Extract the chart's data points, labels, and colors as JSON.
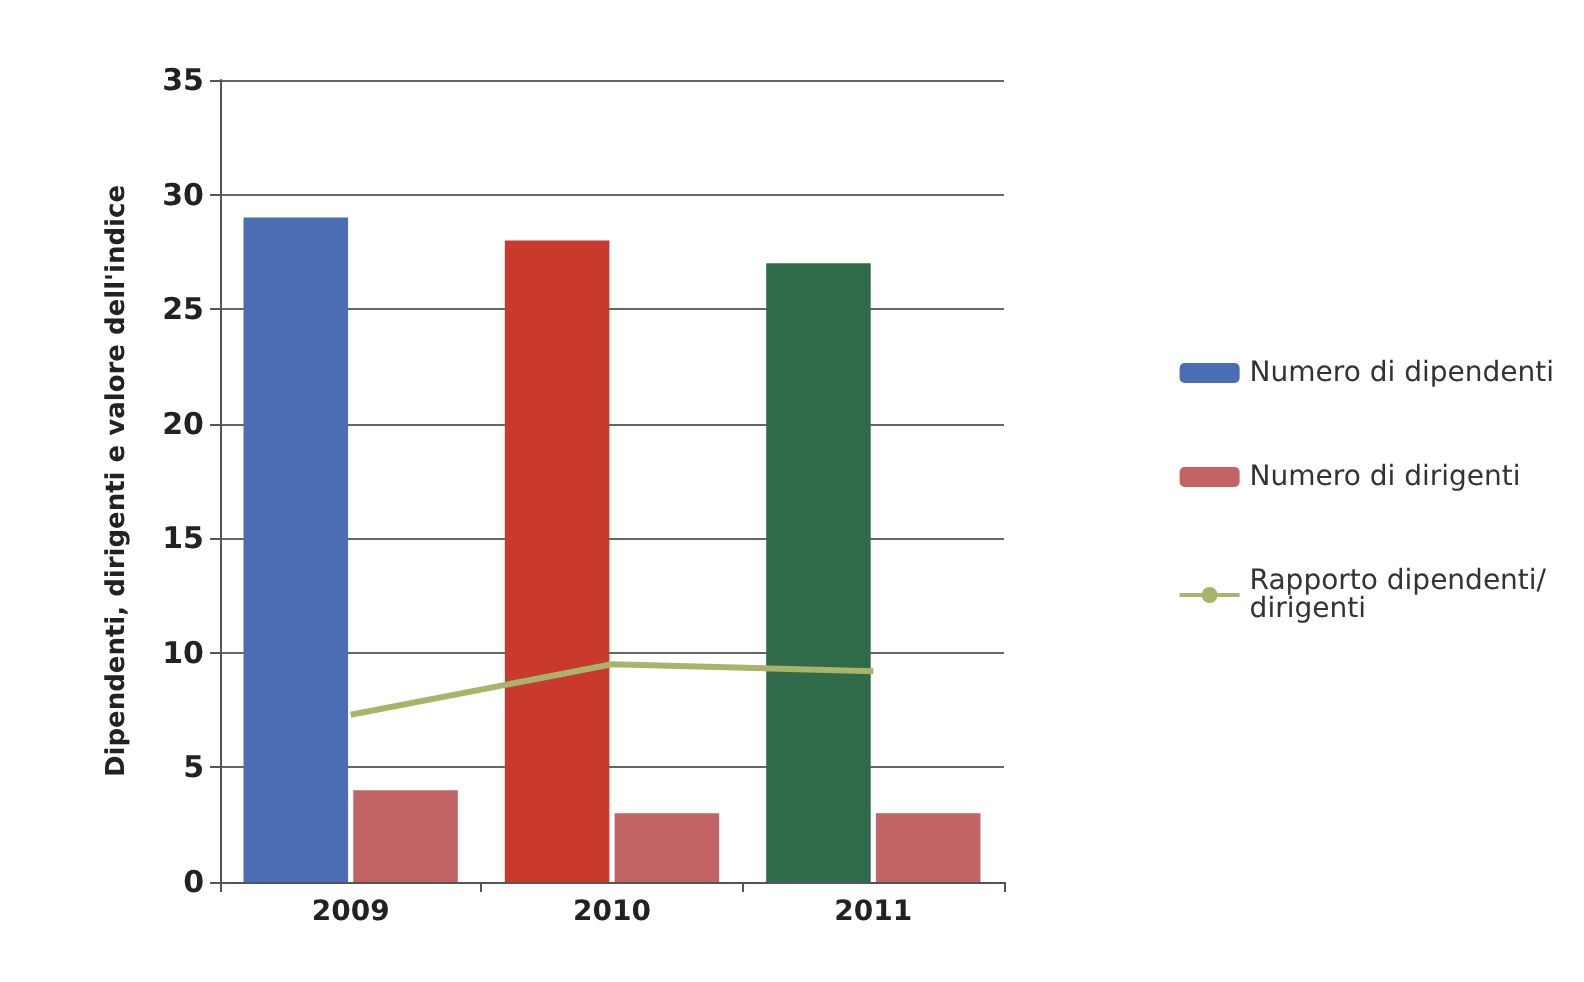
{
  "chart_data": {
    "type": "bar",
    "ylabel": "Dipendenti, dirigenti e valore dell'indice",
    "categories": [
      "2009",
      "2010",
      "2011"
    ],
    "series": [
      {
        "name": "Numero di dipendenti",
        "color": "#4a6db3",
        "colors": [
          "#4a6db3",
          "#c9392c",
          "#2f6a4b"
        ],
        "values": [
          29,
          28,
          27
        ]
      },
      {
        "name": "Numero di dirigenti",
        "color": "#c26466",
        "values": [
          4,
          3,
          3
        ]
      },
      {
        "name": "Rapporto dipendenti/dirigenti",
        "type": "line",
        "color": "#a9b46a",
        "values": [
          7.3,
          9.5,
          9.2
        ]
      }
    ],
    "ylim": [
      0,
      35
    ],
    "yticks": [
      0,
      5,
      10,
      15,
      20,
      25,
      30,
      35
    ],
    "grid": "y",
    "legend": "right",
    "marker": "none"
  }
}
